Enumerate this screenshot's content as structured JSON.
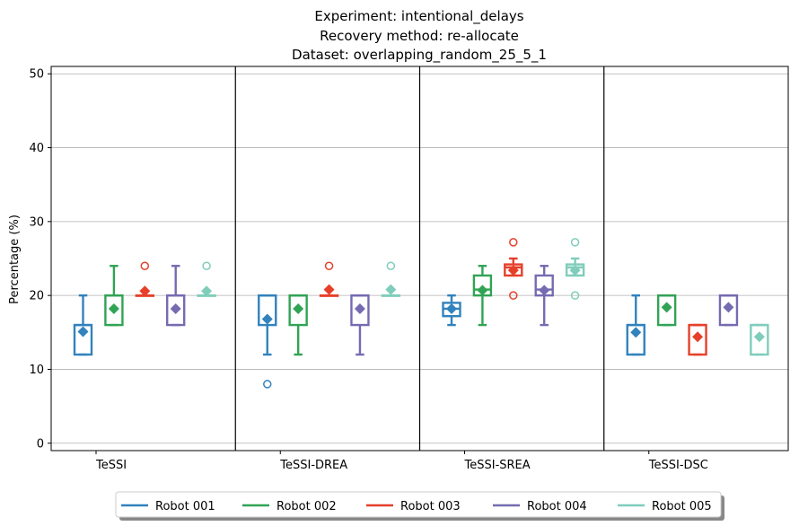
{
  "title_lines": [
    "Experiment: intentional_delays",
    "Recovery method: re-allocate",
    "Dataset: overlapping_random_25_5_1"
  ],
  "chart_data": {
    "type": "box",
    "ylabel": "Percentage (%)",
    "ylim": [
      -1,
      51
    ],
    "yticks": [
      0,
      10,
      20,
      30,
      40,
      50
    ],
    "grid": "horizontal",
    "legend_position": "bottom-center",
    "groups": [
      "TeSSI",
      "TeSSI-DREA",
      "TeSSI-SREA",
      "TeSSI-DSC"
    ],
    "series": [
      {
        "name": "Robot 001",
        "color": "#3182bd",
        "boxes": [
          {
            "whislo": 12,
            "q1": 12,
            "med": 16,
            "q3": 16,
            "whishi": 20,
            "mean": 15.1,
            "fliers": []
          },
          {
            "whislo": 12,
            "q1": 16,
            "med": 20,
            "q3": 20,
            "whishi": 20,
            "mean": 16.8,
            "fliers": [
              8
            ]
          },
          {
            "whislo": 16,
            "q1": 17.2,
            "med": 18.2,
            "q3": 19,
            "whishi": 20,
            "mean": 18.2,
            "fliers": []
          },
          {
            "whislo": 12,
            "q1": 12,
            "med": 16,
            "q3": 16,
            "whishi": 20,
            "mean": 15.0,
            "fliers": []
          }
        ]
      },
      {
        "name": "Robot 002",
        "color": "#31a354",
        "boxes": [
          {
            "whislo": 16,
            "q1": 16,
            "med": 20,
            "q3": 20,
            "whishi": 24,
            "mean": 18.2,
            "fliers": []
          },
          {
            "whislo": 12,
            "q1": 16,
            "med": 20,
            "q3": 20,
            "whishi": 20,
            "mean": 18.2,
            "fliers": []
          },
          {
            "whislo": 16,
            "q1": 20,
            "med": 20.8,
            "q3": 22.7,
            "whishi": 24,
            "mean": 20.7,
            "fliers": []
          },
          {
            "whislo": 16,
            "q1": 16,
            "med": 20,
            "q3": 20,
            "whishi": 20,
            "mean": 18.4,
            "fliers": []
          }
        ]
      },
      {
        "name": "Robot 003",
        "color": "#e6402a",
        "boxes": [
          {
            "whislo": 20,
            "q1": 20,
            "med": 20,
            "q3": 20,
            "whishi": 20,
            "mean": 20.6,
            "fliers": [
              24
            ]
          },
          {
            "whislo": 20,
            "q1": 20,
            "med": 20,
            "q3": 20,
            "whishi": 20,
            "mean": 20.8,
            "fliers": [
              24
            ]
          },
          {
            "whislo": 22.7,
            "q1": 22.7,
            "med": 23.8,
            "q3": 24.2,
            "whishi": 25,
            "mean": 23.4,
            "fliers": [
              27.2,
              20
            ]
          },
          {
            "whislo": 12,
            "q1": 12,
            "med": 16,
            "q3": 16,
            "whishi": 16,
            "mean": 14.4,
            "fliers": []
          }
        ]
      },
      {
        "name": "Robot 004",
        "color": "#756bb1",
        "boxes": [
          {
            "whislo": 16,
            "q1": 16,
            "med": 20,
            "q3": 20,
            "whishi": 24,
            "mean": 18.2,
            "fliers": []
          },
          {
            "whislo": 12,
            "q1": 16,
            "med": 20,
            "q3": 20,
            "whishi": 20,
            "mean": 18.2,
            "fliers": []
          },
          {
            "whislo": 16,
            "q1": 20,
            "med": 20.8,
            "q3": 22.7,
            "whishi": 24,
            "mean": 20.7,
            "fliers": []
          },
          {
            "whislo": 16,
            "q1": 16,
            "med": 20,
            "q3": 20,
            "whishi": 20,
            "mean": 18.4,
            "fliers": []
          }
        ]
      },
      {
        "name": "Robot 005",
        "color": "#7fcdbb",
        "boxes": [
          {
            "whislo": 20,
            "q1": 20,
            "med": 20,
            "q3": 20,
            "whishi": 20,
            "mean": 20.6,
            "fliers": [
              24
            ]
          },
          {
            "whislo": 20,
            "q1": 20,
            "med": 20,
            "q3": 20,
            "whishi": 20,
            "mean": 20.8,
            "fliers": [
              24
            ]
          },
          {
            "whislo": 22.7,
            "q1": 22.7,
            "med": 23.8,
            "q3": 24.2,
            "whishi": 25,
            "mean": 23.4,
            "fliers": [
              27.2,
              20
            ]
          },
          {
            "whislo": 12,
            "q1": 12,
            "med": 16,
            "q3": 16,
            "whishi": 16,
            "mean": 14.4,
            "fliers": []
          }
        ]
      }
    ]
  }
}
